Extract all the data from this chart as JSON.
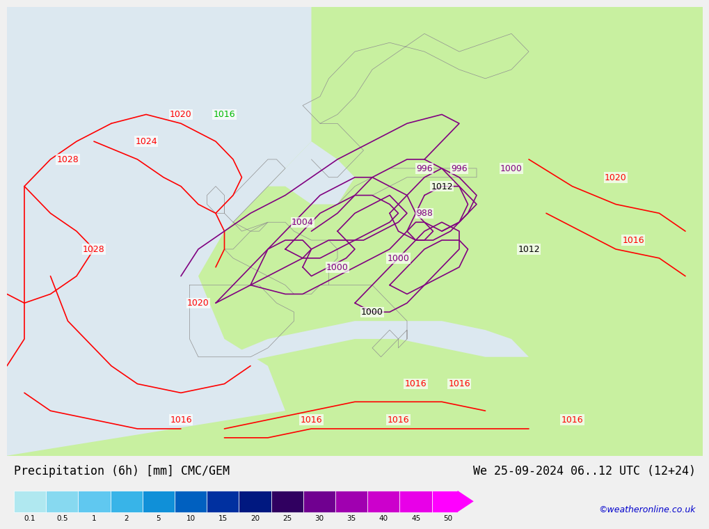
{
  "title_left": "Precipitation (6h) [mm] CMC/GEM",
  "title_right": "We 25-09-2024 06..12 UTC (12+24)",
  "watermark": "©weatheronline.co.uk",
  "colorbar_values": [
    "0.1",
    "0.5",
    "1",
    "2",
    "5",
    "10",
    "15",
    "20",
    "25",
    "30",
    "35",
    "40",
    "45",
    "50"
  ],
  "colorbar_colors": [
    "#b0e8f0",
    "#87d9f0",
    "#60c8f0",
    "#38b4e8",
    "#1090d8",
    "#0060c0",
    "#0030a0",
    "#001880",
    "#300060",
    "#700090",
    "#a000b0",
    "#cc00cc",
    "#e800e8",
    "#ff00ff"
  ],
  "bg_color": "#f0f0f0",
  "map_bg_green": "#c8f0a0",
  "map_bg_ocean": "#dce8f0",
  "pressure_red": "#ff0000",
  "pressure_purple": "#800080",
  "pressure_black": "#000000",
  "pressure_green": "#00bb00",
  "coastline_color": "#909090",
  "label_fontsize": 11,
  "title_fontsize": 12,
  "contour_lw": 1.2,
  "label_fs": 9
}
